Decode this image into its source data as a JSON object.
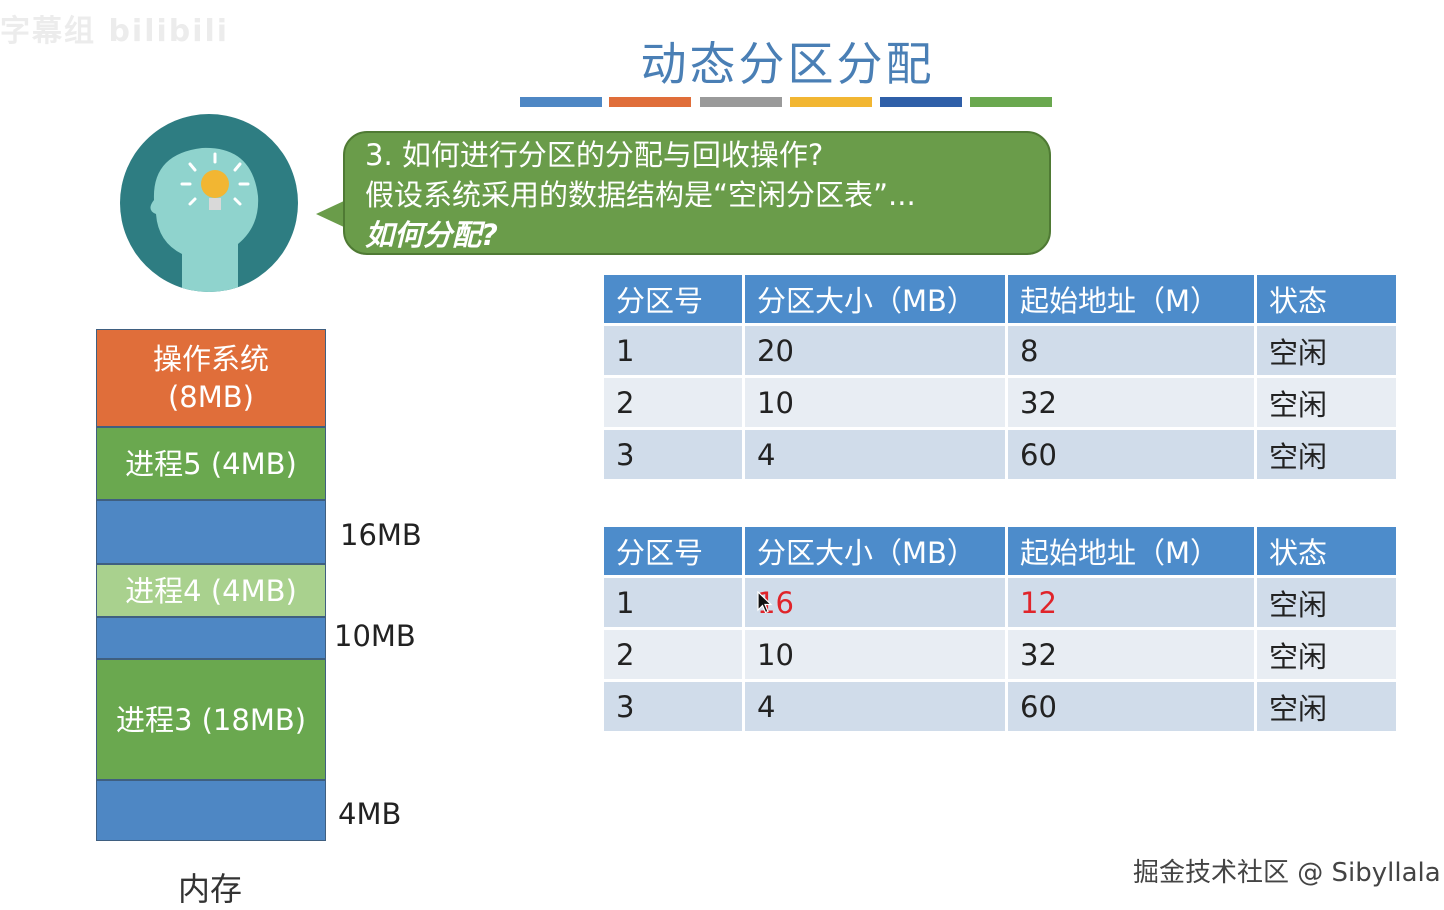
{
  "watermark_top_left": "字幕组 bilibili",
  "title": "动态分区分配",
  "title_bar_colors": [
    "#4e87c4",
    "#e06e3a",
    "#9a9a9a",
    "#f2b632",
    "#2f5fa8",
    "#6aa84f"
  ],
  "bubble": {
    "line1": "3. 如何进行分区的分配与回收操作?",
    "line2": "假设系统采用的数据结构是“空闲分区表”...",
    "line3": "如何分配?"
  },
  "memory": {
    "blocks": [
      {
        "label": "操作系统\n(8MB)",
        "color": "#e06e3a"
      },
      {
        "label": "进程5 (4MB)",
        "color": "#6aa84f"
      },
      {
        "label": "",
        "color": "#4e87c4"
      },
      {
        "label": "进程4 (4MB)",
        "color": "#a9d18e"
      },
      {
        "label": "",
        "color": "#4e87c4"
      },
      {
        "label": "进程3 (18MB)",
        "color": "#6aa84f"
      },
      {
        "label": "",
        "color": "#4e87c4"
      }
    ],
    "free_labels": [
      "16MB",
      "10MB",
      "4MB"
    ],
    "caption": "内存"
  },
  "table1": {
    "headers": [
      "分区号",
      "分区大小（MB）",
      "起始地址（M）",
      "状态"
    ],
    "rows": [
      [
        "1",
        "20",
        "8",
        "空闲"
      ],
      [
        "2",
        "10",
        "32",
        "空闲"
      ],
      [
        "3",
        "4",
        "60",
        "空闲"
      ]
    ]
  },
  "table2": {
    "headers": [
      "分区号",
      "分区大小（MB）",
      "起始地址（M）",
      "状态"
    ],
    "rows": [
      [
        "1",
        "16",
        "12",
        "空闲"
      ],
      [
        "2",
        "10",
        "32",
        "空闲"
      ],
      [
        "3",
        "4",
        "60",
        "空闲"
      ]
    ]
  },
  "watermark_bottom_right": "掘金技术社区 @ Sibyllala"
}
